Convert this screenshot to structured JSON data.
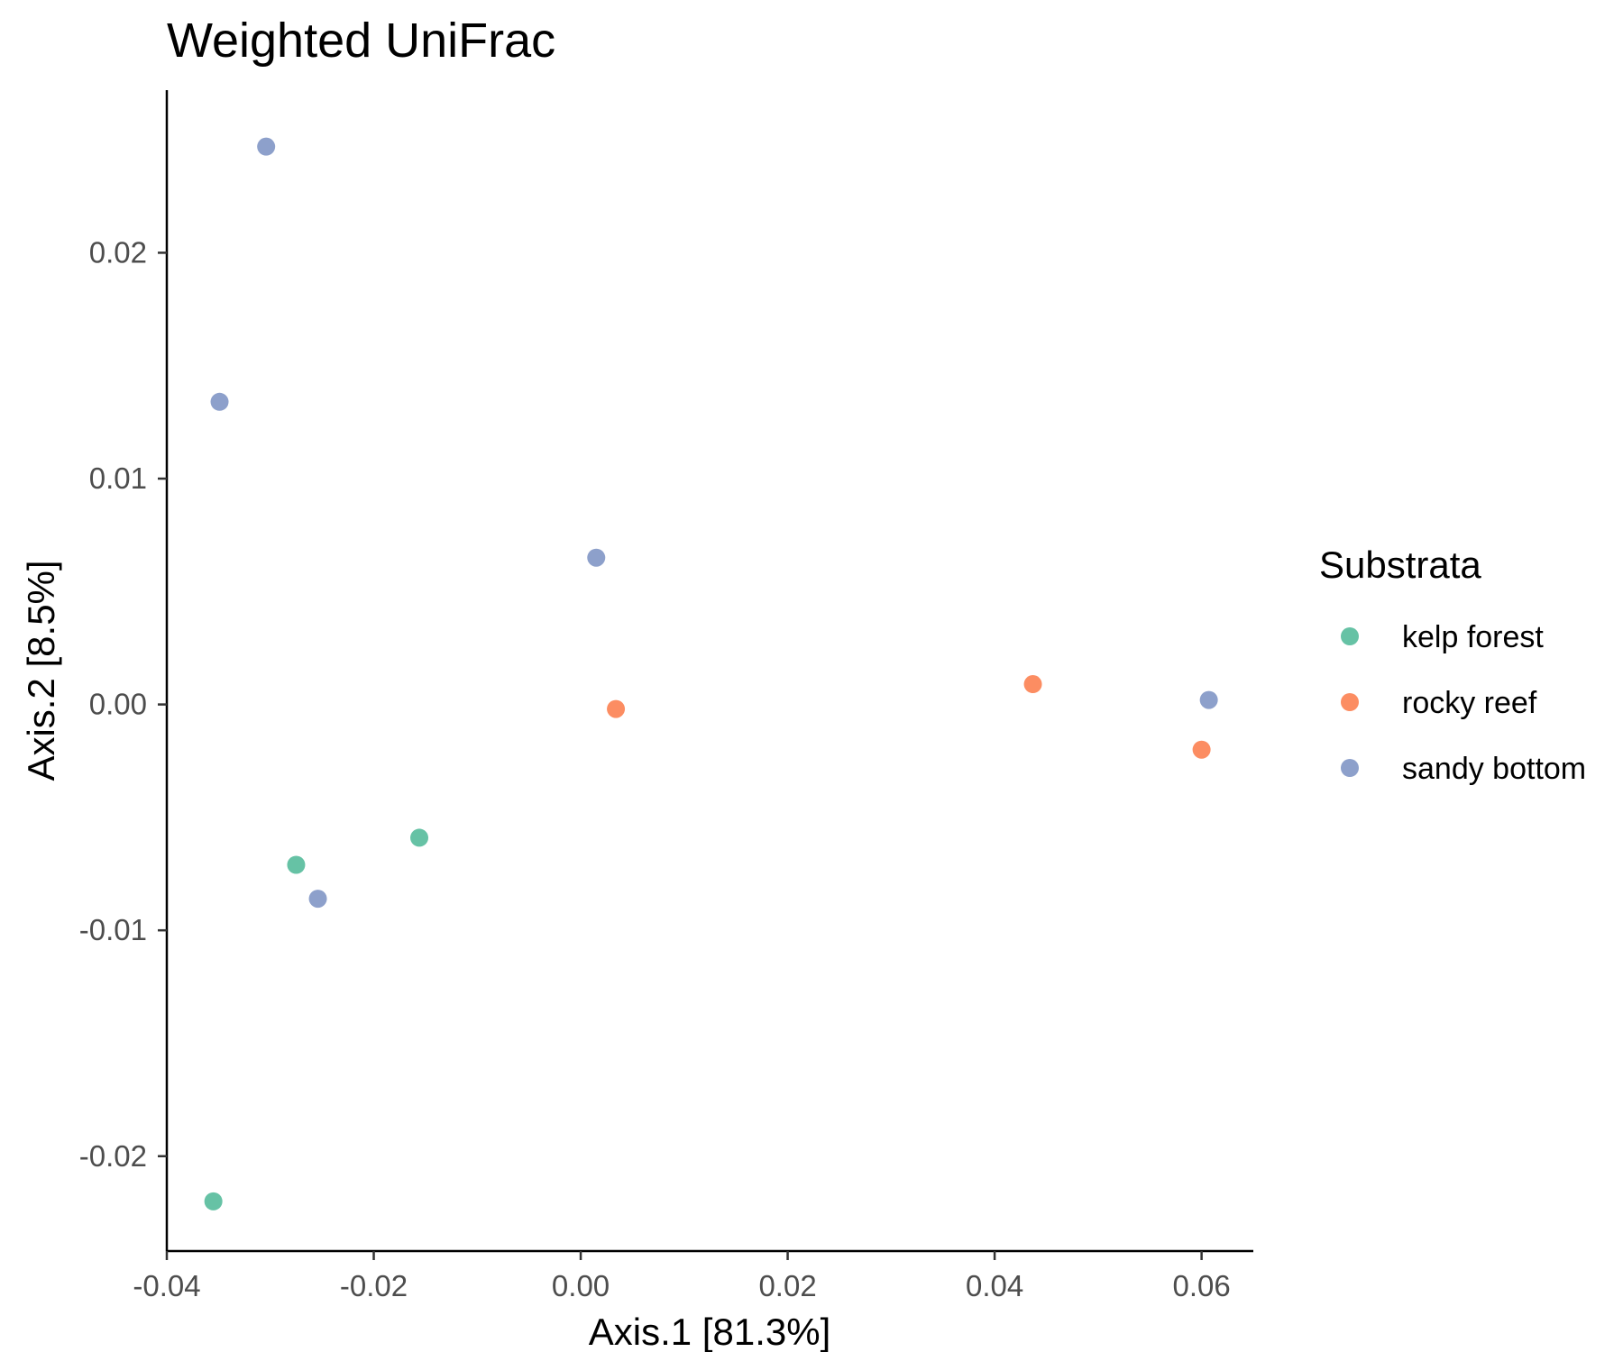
{
  "chart_data": {
    "type": "scatter",
    "title": "Weighted UniFrac",
    "xlabel": "Axis.1   [81.3%]",
    "ylabel": "Axis.2   [8.5%]",
    "xlim": [
      -0.04,
      0.065
    ],
    "ylim": [
      -0.0242,
      0.0272
    ],
    "xticks": [
      -0.04,
      -0.02,
      0.0,
      0.02,
      0.04,
      0.06
    ],
    "xtick_labels": [
      "-0.04",
      "-0.02",
      "0.00",
      "0.02",
      "0.04",
      "0.06"
    ],
    "yticks": [
      -0.02,
      -0.01,
      0.0,
      0.01,
      0.02
    ],
    "ytick_labels": [
      "-0.02",
      "-0.01",
      "0.00",
      "0.01",
      "0.02"
    ],
    "grid": false,
    "legend": {
      "title": "Substrata",
      "position": "right"
    },
    "series": [
      {
        "name": "kelp forest",
        "color": "#66c2a5",
        "points": [
          {
            "x": -0.0275,
            "y": -0.0071
          },
          {
            "x": -0.0156,
            "y": -0.0059
          },
          {
            "x": -0.0355,
            "y": -0.022
          }
        ]
      },
      {
        "name": "rocky reef",
        "color": "#fc8d62",
        "points": [
          {
            "x": 0.0034,
            "y": -0.0002
          },
          {
            "x": 0.0437,
            "y": 0.0009
          },
          {
            "x": 0.06,
            "y": -0.002
          }
        ]
      },
      {
        "name": "sandy bottom",
        "color": "#8da0cb",
        "points": [
          {
            "x": -0.0304,
            "y": 0.0247
          },
          {
            "x": -0.0349,
            "y": 0.0134
          },
          {
            "x": 0.0015,
            "y": 0.0065
          },
          {
            "x": -0.0254,
            "y": -0.0086
          },
          {
            "x": 0.0607,
            "y": 0.0002
          }
        ]
      }
    ]
  }
}
